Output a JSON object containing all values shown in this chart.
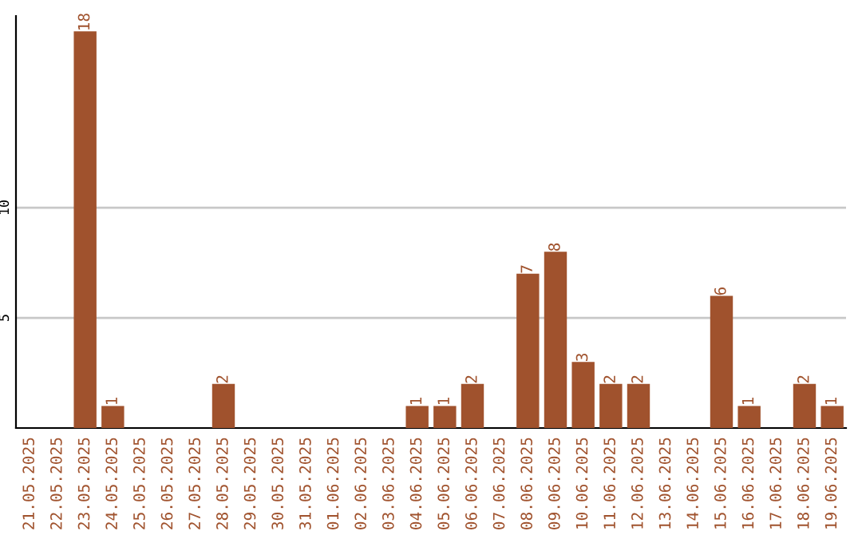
{
  "chart_data": {
    "type": "bar",
    "categories": [
      "21.05.2025",
      "22.05.2025",
      "23.05.2025",
      "24.05.2025",
      "25.05.2025",
      "26.05.2025",
      "27.05.2025",
      "28.05.2025",
      "29.05.2025",
      "30.05.2025",
      "31.05.2025",
      "01.06.2025",
      "02.06.2025",
      "03.06.2025",
      "04.06.2025",
      "05.06.2025",
      "06.06.2025",
      "07.06.2025",
      "08.06.2025",
      "09.06.2025",
      "10.06.2025",
      "11.06.2025",
      "12.06.2025",
      "13.06.2025",
      "14.06.2025",
      "15.06.2025",
      "16.06.2025",
      "17.06.2025",
      "18.06.2025",
      "19.06.2025"
    ],
    "values": [
      0,
      0,
      18,
      1,
      0,
      0,
      0,
      2,
      0,
      0,
      0,
      0,
      0,
      0,
      1,
      1,
      2,
      0,
      7,
      8,
      3,
      2,
      2,
      0,
      0,
      6,
      1,
      0,
      2,
      1
    ],
    "value_labels": [
      null,
      null,
      "18",
      "1",
      null,
      null,
      null,
      "2",
      null,
      null,
      null,
      null,
      null,
      null,
      "1",
      "1",
      "2",
      null,
      "7",
      "8",
      "3",
      "2",
      "2",
      null,
      null,
      "6",
      "1",
      null,
      "2",
      "1"
    ],
    "color": "#a0522d",
    "ylim": [
      0,
      18.7
    ],
    "yticks": [
      5,
      10
    ],
    "grid": "y"
  }
}
